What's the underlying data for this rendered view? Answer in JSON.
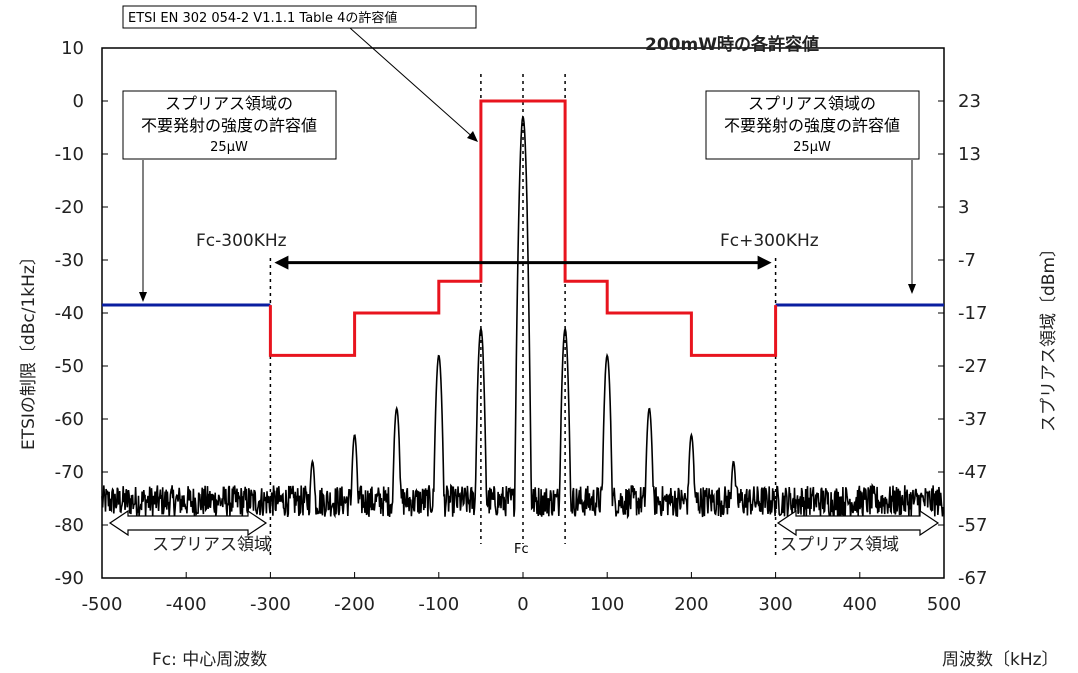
{
  "chart_data": {
    "type": "line",
    "title": "200mW時の各許容値",
    "xlabel": "周波数〔kHz〕",
    "ylabel_left": "ETSIの制限〔dBc/1kHz〕",
    "ylabel_right": "スプリアス領域〔dBm〕",
    "xlim": [
      -500,
      500
    ],
    "ylim_left": [
      -90,
      10
    ],
    "ylim_right": [
      -67,
      33
    ],
    "x_ticks": [
      "-500",
      "-400",
      "-300",
      "-200",
      "-100",
      "0",
      "100",
      "200",
      "300",
      "400",
      "500"
    ],
    "y_ticks_left": [
      "10",
      "0",
      "-10",
      "-20",
      "-30",
      "-40",
      "-50",
      "-60",
      "-70",
      "-80",
      "-90"
    ],
    "y_ticks_right": [
      "23",
      "13",
      "3",
      "-7",
      "-17",
      "-27",
      "-37",
      "-47",
      "-57",
      "-67"
    ],
    "grid": false,
    "series": [
      {
        "name": "ETSI EN 302 054-2 V1.1.1 Table 4の許容値",
        "color": "#e8141e",
        "x": [
          -300,
          -300,
          -200,
          -200,
          -100,
          -100,
          -50,
          -50,
          50,
          50,
          100,
          100,
          200,
          200,
          300,
          300
        ],
        "y": [
          -38.5,
          -48,
          -48,
          -40,
          -40,
          -34,
          -34,
          0,
          0,
          -34,
          -34,
          -40,
          -40,
          -48,
          -48,
          -38.5
        ]
      },
      {
        "name": "スプリアス領域の不要発射の強度の許容値 25μW",
        "color": "#0a1ea0",
        "segments": [
          {
            "x": [
              -500,
              -300
            ],
            "y": [
              -38.5,
              -38.5
            ]
          },
          {
            "x": [
              300,
              500
            ],
            "y": [
              -38.5,
              -38.5
            ]
          }
        ]
      },
      {
        "name": "spectrum",
        "color": "#000000",
        "noise_floor": -75.5,
        "peaks": [
          {
            "x": 0,
            "y": -3
          },
          {
            "x": -50,
            "y": -43
          },
          {
            "x": 50,
            "y": -43
          },
          {
            "x": -100,
            "y": -48
          },
          {
            "x": 100,
            "y": -48
          },
          {
            "x": -150,
            "y": -58
          },
          {
            "x": 150,
            "y": -58
          },
          {
            "x": -200,
            "y": -63
          },
          {
            "x": 200,
            "y": -63
          },
          {
            "x": -250,
            "y": -68
          },
          {
            "x": 250,
            "y": -68
          }
        ]
      }
    ],
    "annotations": {
      "callout_top": "ETSI EN 302 054-2 V1.1.1 Table 4の許容値",
      "callout_left": [
        "スプリアス領域の",
        "不要発射の強度の許容値",
        "25μW"
      ],
      "callout_right": [
        "スプリアス領域の",
        "不要発射の強度の許容値",
        "25μW"
      ],
      "fc_minus": "Fc-300KHz",
      "fc_plus": "Fc+300KHz",
      "spurious_left": "スプリアス領域",
      "spurious_right": "スプリアス領域",
      "fc_center": "Fc",
      "footnote": "Fc: 中心周波数"
    }
  }
}
